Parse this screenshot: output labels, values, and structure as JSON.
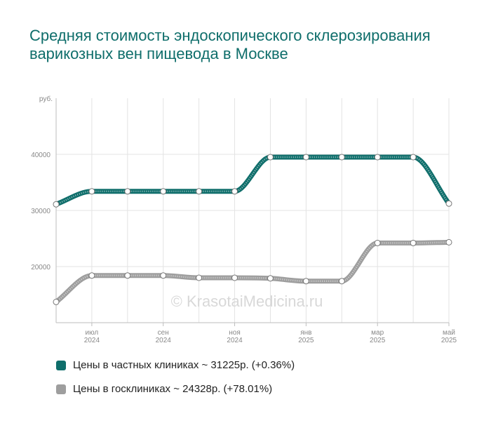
{
  "chart_data": {
    "type": "line",
    "title": "Средняя стоимость эндоскопического склерозирования варикозных вен пищевода в Москве",
    "ylabel": "руб.",
    "xlabel": "",
    "ylim": [
      10000,
      50000
    ],
    "yticks": [
      {
        "value": 20000,
        "label": "20000"
      },
      {
        "value": 30000,
        "label": "30000"
      },
      {
        "value": 40000,
        "label": "40000"
      }
    ],
    "xticks": [
      {
        "index": 1,
        "label": [
          "июл",
          "2024"
        ]
      },
      {
        "index": 3,
        "label": [
          "сен",
          "2024"
        ]
      },
      {
        "index": 5,
        "label": [
          "ноя",
          "2024"
        ]
      },
      {
        "index": 7,
        "label": [
          "янв",
          "2025"
        ]
      },
      {
        "index": 9,
        "label": [
          "мар",
          "2025"
        ]
      },
      {
        "index": 11,
        "label": [
          "май",
          "2025"
        ]
      }
    ],
    "x_count": 12,
    "grid": true,
    "series": [
      {
        "name": "Цены в частных клиниках ~ 31225р. (+0.36%)",
        "color": "#0f6e6b",
        "values": [
          31100,
          33400,
          33400,
          33400,
          33400,
          33400,
          39500,
          39500,
          39500,
          39500,
          39500,
          31225
        ]
      },
      {
        "name": "Цены в госклиниках ~ 24328р. (+78.01%)",
        "color": "#9e9e9e",
        "values": [
          13700,
          18400,
          18400,
          18400,
          18000,
          18000,
          17900,
          17400,
          17400,
          24200,
          24200,
          24328
        ]
      }
    ],
    "watermark": "© KrasotaiMedicina.ru"
  }
}
